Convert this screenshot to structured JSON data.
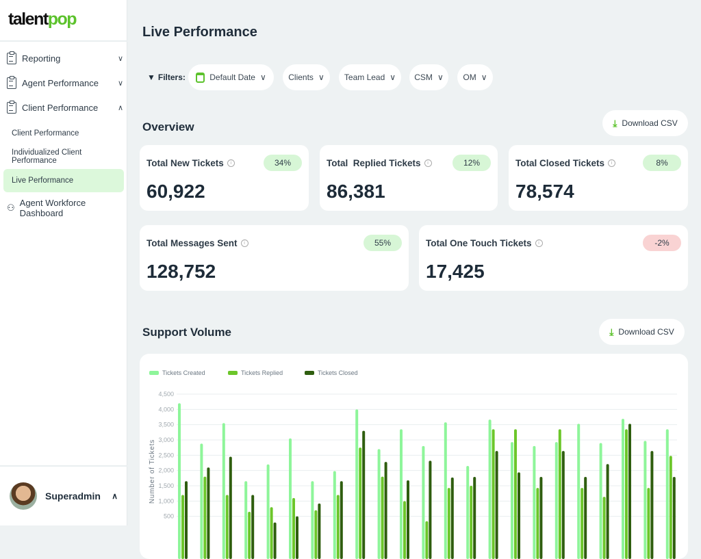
{
  "brand": {
    "logo_part1": "talent",
    "logo_part2": "pop"
  },
  "sidebar": {
    "items": [
      {
        "label": "Reporting",
        "icon": "clipboard-icon",
        "state": "collapsed"
      },
      {
        "label": "Agent Performance",
        "icon": "clipboard-icon",
        "state": "collapsed"
      },
      {
        "label": "Client Performance",
        "icon": "clipboard-icon",
        "state": "expanded"
      }
    ],
    "sub_items": [
      {
        "label": "Client Performance"
      },
      {
        "label": "Individualized Client Performance"
      },
      {
        "label": "Live Performance",
        "active": true
      }
    ],
    "workforce": {
      "label": "Agent Workforce Dashboard",
      "icon": "people-icon"
    },
    "user": {
      "name": "Superadmin"
    }
  },
  "page": {
    "title": "Live Performance"
  },
  "filters": {
    "label": "Filters:",
    "items": [
      "Default Date",
      "Clients",
      "Team Lead",
      "CSM",
      "OM"
    ]
  },
  "overview": {
    "title": "Overview",
    "download_label": "Download CSV",
    "cards": [
      {
        "label": "Total New Tickets",
        "badge": "34%",
        "value": "60,922"
      },
      {
        "label": "Total  Replied Tickets",
        "badge": "12%",
        "value": "86,381"
      },
      {
        "label": "Total Closed Tickets",
        "badge": "8%",
        "value": "78,574"
      },
      {
        "label": "Total Messages Sent",
        "badge": "55%",
        "value": "128,752"
      },
      {
        "label": "Total One Touch Tickets",
        "badge": "-2%",
        "value": "17,425"
      }
    ]
  },
  "support_volume": {
    "title": "Support Volume",
    "download_label": "Download CSV"
  },
  "colors": {
    "accent": "#5cc22c",
    "created": "#8ef59a",
    "replied": "#6cc62a",
    "closed": "#2f5e0f",
    "badge_pos": "#d7f6d6",
    "badge_neg": "#f9d3d3"
  },
  "chart_data": {
    "type": "bar",
    "ylabel": "Number of Tickets",
    "ylim": [
      0,
      4500
    ],
    "grid": true,
    "legend_position": "top-left",
    "yticks": [
      "500",
      "1,000",
      "1,500",
      "2,000",
      "2,500",
      "3,000",
      "3,500",
      "4,000",
      "4,500"
    ],
    "series": [
      {
        "name": "Tickets Created",
        "values": [
          4200,
          2880,
          3550,
          1650,
          2200,
          3050,
          1650,
          1980,
          4000,
          2700,
          3350,
          2800,
          3575,
          2150,
          3665,
          2930,
          2800,
          2930,
          3530,
          2900,
          3690,
          2970,
          3350
        ]
      },
      {
        "name": "Tickets Replied",
        "values": [
          1200,
          1800,
          1200,
          650,
          800,
          1100,
          700,
          1200,
          2750,
          1800,
          1000,
          340,
          1430,
          1500,
          3350,
          3350,
          1430,
          3350,
          1430,
          1140,
          3350,
          1430,
          2480
        ]
      },
      {
        "name": "Tickets Closed",
        "values": [
          1650,
          2100,
          2450,
          1200,
          300,
          500,
          920,
          1650,
          3300,
          2280,
          1680,
          2320,
          1770,
          1790,
          2640,
          1940,
          1790,
          2640,
          1790,
          2210,
          3530,
          2640,
          1790
        ]
      }
    ]
  }
}
